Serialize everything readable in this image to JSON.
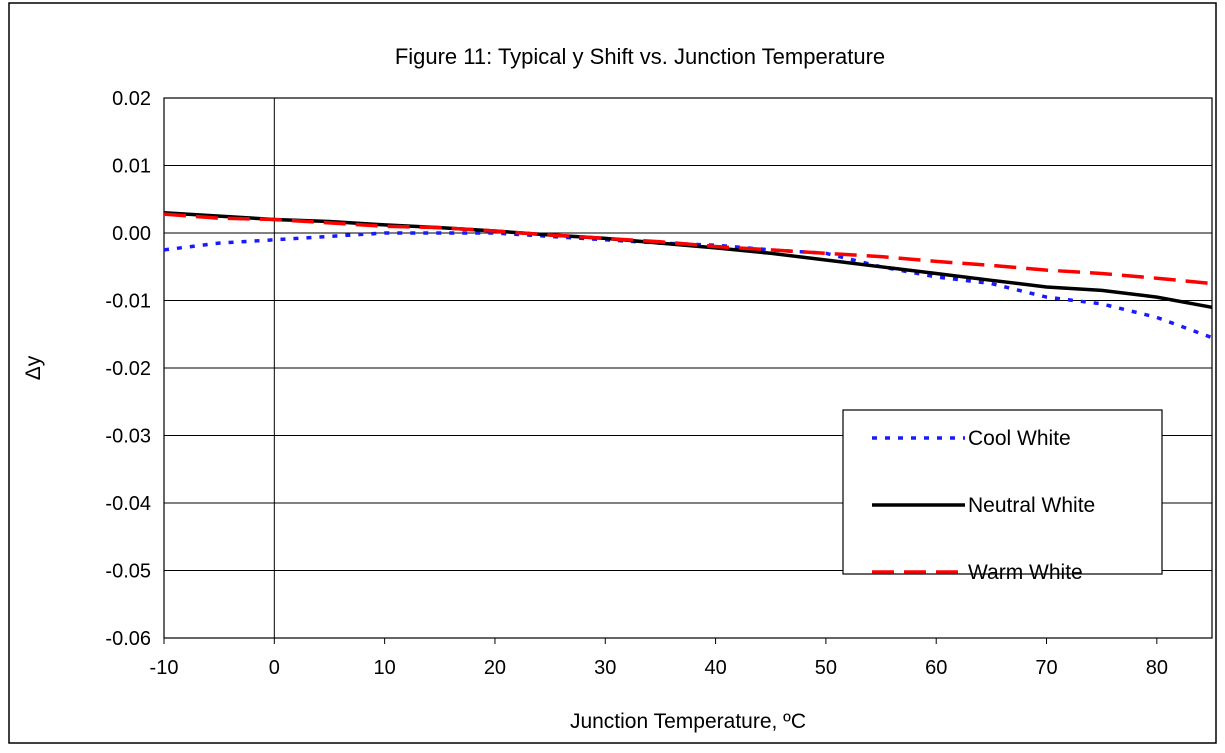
{
  "chart_data": {
    "type": "line",
    "title": "Figure 11:  Typical y Shift vs. Junction Temperature",
    "xlabel": "Junction Temperature, ºC",
    "ylabel": "Δy",
    "xlim": [
      -10,
      85
    ],
    "ylim": [
      -0.06,
      0.02
    ],
    "x_ticks": [
      -10,
      0,
      10,
      20,
      30,
      40,
      50,
      60,
      70,
      80
    ],
    "x_tick_labels": [
      "-10",
      "0",
      "10",
      "20",
      "30",
      "40",
      "50",
      "60",
      "70",
      "80"
    ],
    "y_ticks": [
      0.02,
      0.01,
      0.0,
      -0.01,
      -0.02,
      -0.03,
      -0.04,
      -0.05,
      -0.06
    ],
    "y_tick_labels": [
      "0.02",
      "0.01",
      "0.00",
      "-0.01",
      "-0.02",
      "-0.03",
      "-0.04",
      "-0.05",
      "-0.06"
    ],
    "grid": "horizontal",
    "legend_position": "lower-right",
    "series": [
      {
        "name": "Cool White",
        "color": "#1a1aff",
        "style": "dotted",
        "x": [
          -10,
          -5,
          0,
          5,
          10,
          15,
          20,
          25,
          30,
          35,
          40,
          45,
          50,
          55,
          60,
          65,
          70,
          75,
          80,
          85
        ],
        "y": [
          -0.0025,
          -0.0015,
          -0.001,
          -0.0005,
          0.0,
          0.0,
          0.0,
          -0.0005,
          -0.001,
          -0.0015,
          -0.0018,
          -0.0025,
          -0.003,
          -0.005,
          -0.0065,
          -0.0075,
          -0.0095,
          -0.0105,
          -0.0125,
          -0.0155
        ]
      },
      {
        "name": "Neutral White",
        "color": "#000000",
        "style": "solid",
        "x": [
          -10,
          -5,
          0,
          5,
          10,
          15,
          20,
          25,
          30,
          35,
          40,
          45,
          50,
          55,
          60,
          65,
          70,
          75,
          80,
          85
        ],
        "y": [
          0.003,
          0.0025,
          0.002,
          0.0017,
          0.0012,
          0.0008,
          0.0003,
          -0.0003,
          -0.0008,
          -0.0015,
          -0.0022,
          -0.003,
          -0.004,
          -0.005,
          -0.006,
          -0.007,
          -0.008,
          -0.0085,
          -0.0095,
          -0.011
        ]
      },
      {
        "name": "Warm White",
        "color": "#ff0000",
        "style": "dashed",
        "x": [
          -10,
          -5,
          0,
          5,
          10,
          15,
          20,
          25,
          30,
          35,
          40,
          45,
          50,
          55,
          60,
          65,
          70,
          75,
          80,
          85
        ],
        "y": [
          0.0028,
          0.0022,
          0.002,
          0.0015,
          0.001,
          0.0008,
          0.0003,
          -0.0003,
          -0.0008,
          -0.0013,
          -0.002,
          -0.0025,
          -0.003,
          -0.0035,
          -0.0042,
          -0.0048,
          -0.0055,
          -0.006,
          -0.0067,
          -0.0075
        ]
      }
    ]
  }
}
